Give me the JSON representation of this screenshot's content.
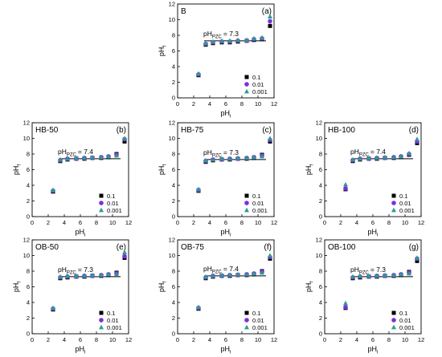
{
  "chart_data": [
    {
      "type": "scatter",
      "sample": "B",
      "panel_label": "(a)",
      "pzc_label": "pH",
      "pzc_subscript": "PZC",
      "pzc_value": "= 7.3",
      "xlabel": "pH",
      "xlabel_sub": "i",
      "ylabel": "pH",
      "ylabel_sub": "f",
      "xlim": [
        0,
        12
      ],
      "ylim": [
        0,
        12
      ],
      "xticks": [
        "0",
        "2",
        "4",
        "6",
        "8",
        "10",
        "12"
      ],
      "yticks": [
        "0",
        "2",
        "4",
        "6",
        "8",
        "10",
        "12"
      ],
      "pzc_line": {
        "x": [
          3.3,
          11.0
        ],
        "y": 7.3
      },
      "legend_position": "bottom-right",
      "series": [
        {
          "name": "0.1",
          "marker": "square",
          "color": "#000000",
          "x": [
            2.6,
            3.5,
            4.4,
            5.5,
            6.5,
            7.5,
            8.6,
            9.5,
            10.5,
            11.5
          ],
          "y": [
            2.9,
            6.8,
            7.0,
            7.1,
            7.1,
            7.2,
            7.3,
            7.4,
            7.5,
            9.2
          ]
        },
        {
          "name": "0.01",
          "marker": "circle",
          "color": "#7b2fe0",
          "x": [
            2.6,
            3.5,
            4.4,
            5.5,
            6.5,
            7.5,
            8.6,
            9.5,
            10.5,
            11.5
          ],
          "y": [
            3.0,
            6.9,
            7.1,
            7.2,
            7.2,
            7.3,
            7.3,
            7.5,
            7.6,
            9.8
          ]
        },
        {
          "name": "0.001",
          "marker": "triangle",
          "color": "#2a9d8f",
          "x": [
            2.6,
            3.5,
            4.4,
            5.5,
            6.5,
            7.5,
            8.6,
            9.5,
            10.5,
            11.5
          ],
          "y": [
            3.1,
            7.0,
            7.2,
            7.3,
            7.3,
            7.4,
            7.4,
            7.6,
            7.7,
            10.4
          ]
        }
      ]
    },
    {
      "type": "scatter",
      "sample": "HB-50",
      "panel_label": "(b)",
      "pzc_label": "pH",
      "pzc_subscript": "PZC",
      "pzc_value": "= 7.4",
      "xlabel": "pH",
      "xlabel_sub": "i",
      "ylabel": "pH",
      "ylabel_sub": "f",
      "xlim": [
        0,
        12
      ],
      "ylim": [
        0,
        12
      ],
      "xticks": [
        "0",
        "2",
        "4",
        "6",
        "8",
        "10",
        "12"
      ],
      "yticks": [
        "0",
        "2",
        "4",
        "6",
        "8",
        "10",
        "12"
      ],
      "pzc_line": {
        "x": [
          3.3,
          11.0
        ],
        "y": 7.4
      },
      "legend_position": "bottom-right",
      "series": [
        {
          "name": "0.1",
          "marker": "square",
          "color": "#000000",
          "x": [
            2.6,
            3.5,
            4.4,
            5.5,
            6.5,
            7.5,
            8.6,
            9.5,
            10.5,
            11.5
          ],
          "y": [
            3.2,
            7.1,
            7.3,
            7.4,
            7.4,
            7.5,
            7.5,
            7.6,
            8.0,
            9.6
          ]
        },
        {
          "name": "0.01",
          "marker": "circle",
          "color": "#7b2fe0",
          "x": [
            2.6,
            3.5,
            4.4,
            5.5,
            6.5,
            7.5,
            8.6,
            9.5,
            10.5,
            11.5
          ],
          "y": [
            3.3,
            7.2,
            7.4,
            7.4,
            7.5,
            7.5,
            7.6,
            7.7,
            7.9,
            9.9
          ]
        },
        {
          "name": "0.001",
          "marker": "triangle",
          "color": "#2a9d8f",
          "x": [
            2.6,
            3.5,
            4.4,
            5.5,
            6.5,
            7.5,
            8.6,
            9.5,
            10.5,
            11.5
          ],
          "y": [
            3.4,
            7.3,
            7.4,
            7.5,
            7.5,
            7.6,
            7.6,
            7.7,
            7.8,
            10.0
          ]
        }
      ]
    },
    {
      "type": "scatter",
      "sample": "HB-75",
      "panel_label": "(c)",
      "pzc_label": "pH",
      "pzc_subscript": "PZC",
      "pzc_value": "= 7.3",
      "xlabel": "pH",
      "xlabel_sub": "i",
      "ylabel": "pH",
      "ylabel_sub": "f",
      "xlim": [
        0,
        12
      ],
      "ylim": [
        0,
        12
      ],
      "xticks": [
        "0",
        "2",
        "4",
        "6",
        "8",
        "10",
        "12"
      ],
      "yticks": [
        "0",
        "2",
        "4",
        "6",
        "8",
        "10",
        "12"
      ],
      "pzc_line": {
        "x": [
          3.3,
          11.0
        ],
        "y": 7.3
      },
      "legend_position": "bottom-right",
      "series": [
        {
          "name": "0.1",
          "marker": "square",
          "color": "#000000",
          "x": [
            2.6,
            3.5,
            4.4,
            5.5,
            6.5,
            7.5,
            8.6,
            9.5,
            10.5,
            11.5
          ],
          "y": [
            3.3,
            7.0,
            7.2,
            7.3,
            7.3,
            7.4,
            7.4,
            7.5,
            7.9,
            9.6
          ]
        },
        {
          "name": "0.01",
          "marker": "circle",
          "color": "#7b2fe0",
          "x": [
            2.6,
            3.5,
            4.4,
            5.5,
            6.5,
            7.5,
            8.6,
            9.5,
            10.5,
            11.5
          ],
          "y": [
            3.4,
            7.1,
            7.3,
            7.3,
            7.4,
            7.4,
            7.5,
            7.6,
            7.8,
            9.8
          ]
        },
        {
          "name": "0.001",
          "marker": "triangle",
          "color": "#2a9d8f",
          "x": [
            2.6,
            3.5,
            4.4,
            5.5,
            6.5,
            7.5,
            8.6,
            9.5,
            10.5,
            11.5
          ],
          "y": [
            3.5,
            7.2,
            7.3,
            7.4,
            7.4,
            7.5,
            7.5,
            7.6,
            7.7,
            10.0
          ]
        }
      ]
    },
    {
      "type": "scatter",
      "sample": "HB-100",
      "panel_label": "(d)",
      "pzc_label": "pH",
      "pzc_subscript": "PZC",
      "pzc_value": "= 7.4",
      "xlabel": "pH",
      "xlabel_sub": "i",
      "ylabel": "pH",
      "ylabel_sub": "f",
      "xlim": [
        0,
        12
      ],
      "ylim": [
        0,
        12
      ],
      "xticks": [
        "0",
        "2",
        "4",
        "6",
        "8",
        "10",
        "12"
      ],
      "yticks": [
        "0",
        "2",
        "4",
        "6",
        "8",
        "10",
        "12"
      ],
      "pzc_line": {
        "x": [
          3.3,
          11.0
        ],
        "y": 7.4
      },
      "legend_position": "bottom-right",
      "series": [
        {
          "name": "0.1",
          "marker": "square",
          "color": "#000000",
          "x": [
            2.6,
            3.5,
            4.4,
            5.5,
            6.5,
            7.5,
            8.6,
            9.5,
            10.5,
            11.5
          ],
          "y": [
            3.5,
            7.1,
            7.3,
            7.4,
            7.4,
            7.5,
            7.5,
            7.6,
            7.9,
            9.4
          ]
        },
        {
          "name": "0.01",
          "marker": "circle",
          "color": "#7b2fe0",
          "x": [
            2.6,
            3.5,
            4.4,
            5.5,
            6.5,
            7.5,
            8.6,
            9.5,
            10.5,
            11.5
          ],
          "y": [
            3.6,
            7.2,
            7.4,
            7.4,
            7.5,
            7.5,
            7.6,
            7.7,
            8.0,
            9.6
          ]
        },
        {
          "name": "0.001",
          "marker": "triangle",
          "color": "#2a9d8f",
          "x": [
            2.6,
            3.5,
            4.4,
            5.5,
            6.5,
            7.5,
            8.6,
            9.5,
            10.5,
            11.5
          ],
          "y": [
            4.1,
            7.3,
            7.4,
            7.5,
            7.5,
            7.6,
            7.6,
            7.7,
            8.1,
            9.9
          ]
        }
      ]
    },
    {
      "type": "scatter",
      "sample": "OB-50",
      "panel_label": "(e)",
      "pzc_label": "pH",
      "pzc_subscript": "PZC",
      "pzc_value": "= 7.3",
      "xlabel": "pH",
      "xlabel_sub": "i",
      "ylabel": "pH",
      "ylabel_sub": "f",
      "xlim": [
        0,
        12
      ],
      "ylim": [
        0,
        12
      ],
      "xticks": [
        "0",
        "2",
        "4",
        "6",
        "8",
        "10",
        "12"
      ],
      "yticks": [
        "0",
        "2",
        "4",
        "6",
        "8",
        "10",
        "12"
      ],
      "pzc_line": {
        "x": [
          3.3,
          11.0
        ],
        "y": 7.3
      },
      "legend_position": "bottom-right",
      "series": [
        {
          "name": "0.1",
          "marker": "square",
          "color": "#000000",
          "x": [
            2.6,
            3.5,
            4.4,
            5.5,
            6.5,
            7.5,
            8.6,
            9.5,
            10.5,
            11.5
          ],
          "y": [
            3.1,
            7.1,
            7.2,
            7.3,
            7.3,
            7.4,
            7.4,
            7.5,
            7.8,
            9.7
          ]
        },
        {
          "name": "0.01",
          "marker": "circle",
          "color": "#7b2fe0",
          "x": [
            2.6,
            3.5,
            4.4,
            5.5,
            6.5,
            7.5,
            8.6,
            9.5,
            10.5,
            11.5
          ],
          "y": [
            3.2,
            7.2,
            7.3,
            7.3,
            7.4,
            7.4,
            7.5,
            7.6,
            7.7,
            9.9
          ]
        },
        {
          "name": "0.001",
          "marker": "triangle",
          "color": "#2a9d8f",
          "x": [
            2.6,
            3.5,
            4.4,
            5.5,
            6.5,
            7.5,
            8.6,
            9.5,
            10.5,
            11.5
          ],
          "y": [
            3.3,
            7.3,
            7.4,
            7.4,
            7.4,
            7.5,
            7.5,
            7.6,
            7.6,
            10.4
          ]
        }
      ]
    },
    {
      "type": "scatter",
      "sample": "OB-75",
      "panel_label": "(f)",
      "pzc_label": "pH",
      "pzc_subscript": "PZC",
      "pzc_value": "= 7.4",
      "xlabel": "pH",
      "xlabel_sub": "i",
      "ylabel": "pH",
      "ylabel_sub": "f",
      "xlim": [
        0,
        12
      ],
      "ylim": [
        0,
        12
      ],
      "xticks": [
        "0",
        "2",
        "4",
        "6",
        "8",
        "10",
        "12"
      ],
      "yticks": [
        "0",
        "2",
        "4",
        "6",
        "8",
        "10",
        "12"
      ],
      "pzc_line": {
        "x": [
          3.3,
          11.0
        ],
        "y": 7.4
      },
      "legend_position": "bottom-right",
      "series": [
        {
          "name": "0.1",
          "marker": "square",
          "color": "#000000",
          "x": [
            2.6,
            3.5,
            4.4,
            5.5,
            6.5,
            7.5,
            8.6,
            9.5,
            10.5,
            11.5
          ],
          "y": [
            3.2,
            7.1,
            7.3,
            7.4,
            7.4,
            7.5,
            7.5,
            7.6,
            8.0,
            9.6
          ]
        },
        {
          "name": "0.01",
          "marker": "circle",
          "color": "#7b2fe0",
          "x": [
            2.6,
            3.5,
            4.4,
            5.5,
            6.5,
            7.5,
            8.6,
            9.5,
            10.5,
            11.5
          ],
          "y": [
            3.3,
            7.2,
            7.4,
            7.4,
            7.5,
            7.5,
            7.6,
            7.7,
            7.9,
            9.8
          ]
        },
        {
          "name": "0.001",
          "marker": "triangle",
          "color": "#2a9d8f",
          "x": [
            2.6,
            3.5,
            4.4,
            5.5,
            6.5,
            7.5,
            8.6,
            9.5,
            10.5,
            11.5
          ],
          "y": [
            3.4,
            7.3,
            7.4,
            7.5,
            7.5,
            7.6,
            7.6,
            7.7,
            7.8,
            10.0
          ]
        }
      ]
    },
    {
      "type": "scatter",
      "sample": "OB-100",
      "panel_label": "(g)",
      "pzc_label": "pH",
      "pzc_subscript": "PZC",
      "pzc_value": "= 7.3",
      "xlabel": "pH",
      "xlabel_sub": "i",
      "ylabel": "pH",
      "ylabel_sub": "f",
      "xlim": [
        0,
        12
      ],
      "ylim": [
        0,
        12
      ],
      "xticks": [
        "0",
        "2",
        "4",
        "6",
        "8",
        "10",
        "12"
      ],
      "yticks": [
        "0",
        "2",
        "4",
        "6",
        "8",
        "10",
        "12"
      ],
      "pzc_line": {
        "x": [
          3.3,
          11.0
        ],
        "y": 7.3
      },
      "legend_position": "bottom-right",
      "series": [
        {
          "name": "0.1",
          "marker": "square",
          "color": "#000000",
          "x": [
            2.6,
            3.5,
            4.4,
            5.5,
            6.5,
            7.5,
            8.6,
            9.5,
            10.5,
            11.5
          ],
          "y": [
            3.3,
            7.1,
            7.2,
            7.3,
            7.3,
            7.4,
            7.4,
            7.5,
            7.9,
            9.3
          ]
        },
        {
          "name": "0.01",
          "marker": "circle",
          "color": "#7b2fe0",
          "x": [
            2.6,
            3.5,
            4.4,
            5.5,
            6.5,
            7.5,
            8.6,
            9.5,
            10.5,
            11.5
          ],
          "y": [
            3.4,
            7.2,
            7.3,
            7.3,
            7.4,
            7.4,
            7.5,
            7.6,
            7.8,
            9.6
          ]
        },
        {
          "name": "0.001",
          "marker": "triangle",
          "color": "#2a9d8f",
          "x": [
            2.6,
            3.5,
            4.4,
            5.5,
            6.5,
            7.5,
            8.6,
            9.5,
            10.5,
            11.5
          ],
          "y": [
            3.9,
            7.3,
            7.4,
            7.4,
            7.4,
            7.5,
            7.5,
            7.6,
            7.7,
            9.7
          ]
        }
      ]
    }
  ]
}
